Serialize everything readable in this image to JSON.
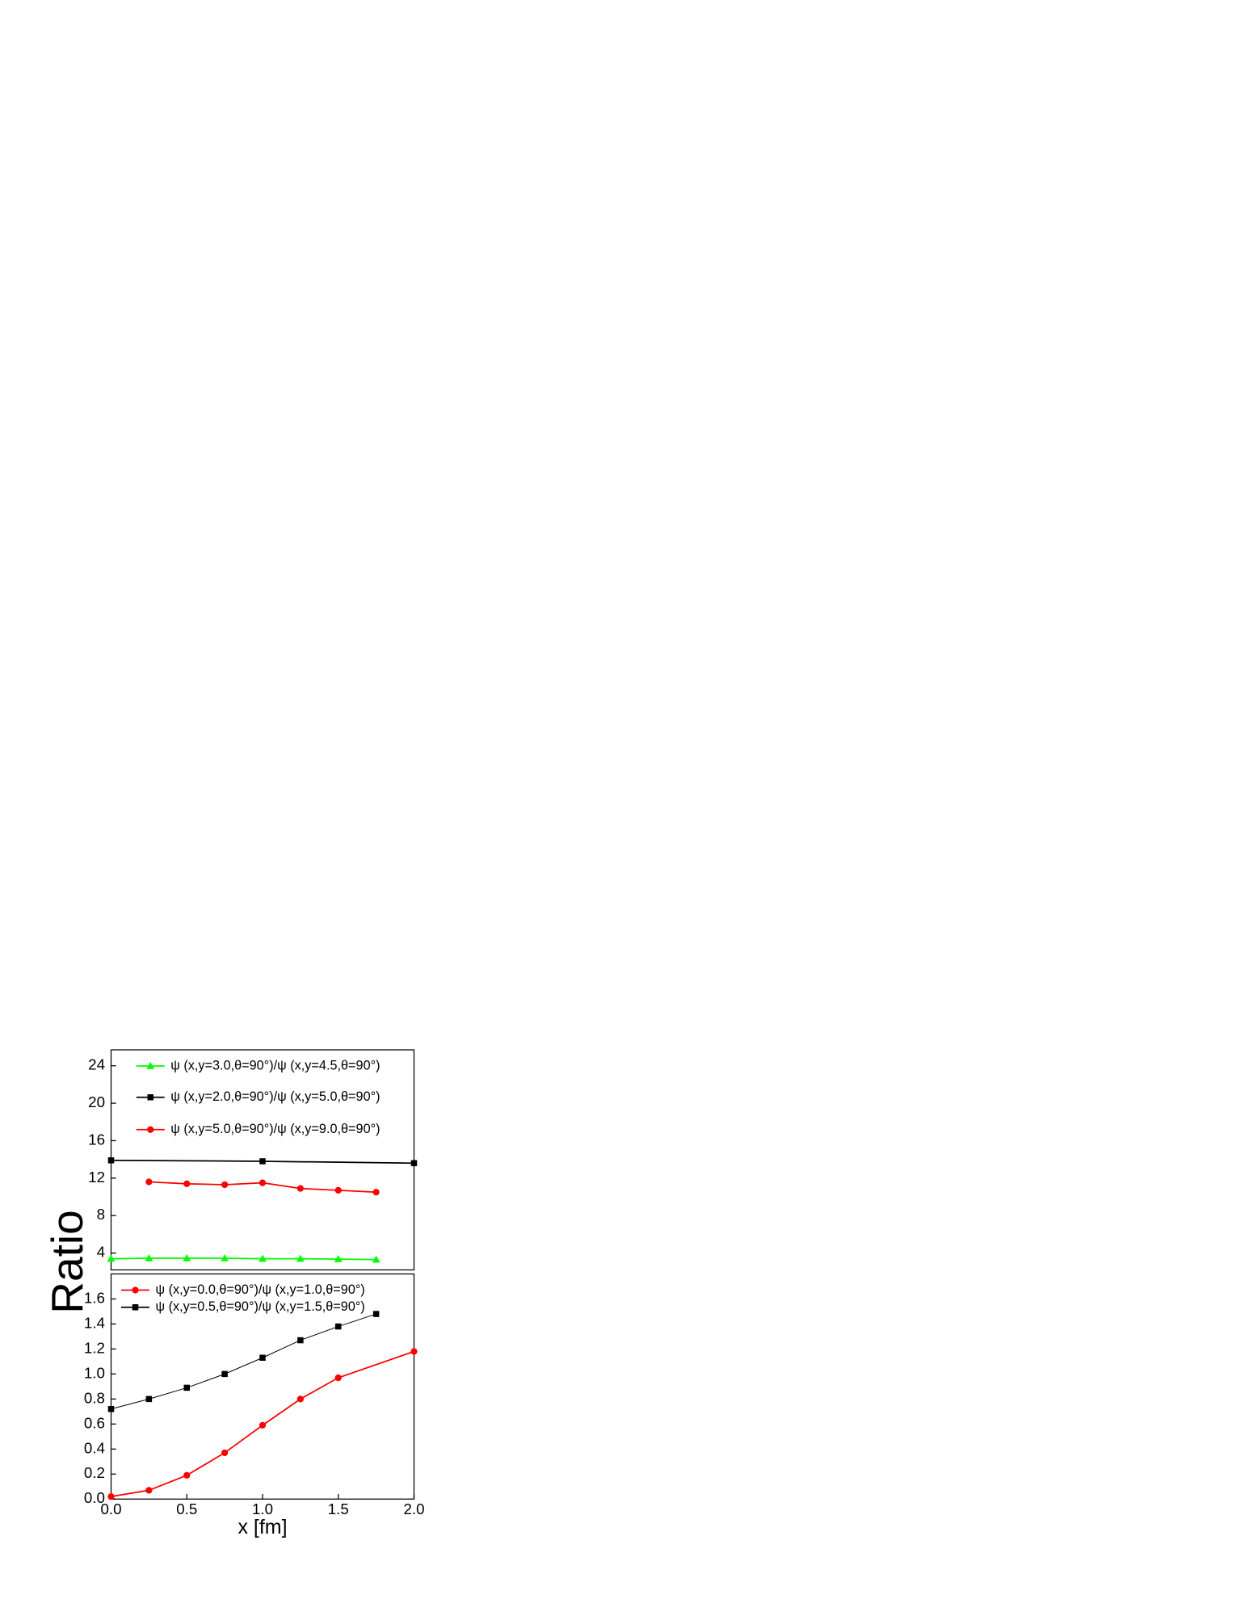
{
  "chart_data": [
    {
      "type": "line",
      "ylabel": "Ratio",
      "xlim": [
        0,
        2
      ],
      "ylim": [
        2.2,
        25.7
      ],
      "yticks": [
        4,
        8,
        12,
        16,
        20,
        24
      ],
      "series": [
        {
          "name": "ψ (x,y=3.0,θ=90°)/ψ (x,y=4.5,θ=90°)",
          "color": "#00ff00",
          "marker": "triangle",
          "x": [
            0,
            0.25,
            0.5,
            0.75,
            1,
            1.25,
            1.5,
            1.75
          ],
          "values": [
            3.4,
            3.45,
            3.45,
            3.45,
            3.4,
            3.4,
            3.35,
            3.3
          ]
        },
        {
          "name": "ψ (x,y=2.0,θ=90°)/ψ (x,y=5.0,θ=90°)",
          "color": "#000000",
          "marker": "square",
          "x": [
            0,
            1,
            2
          ],
          "values": [
            13.9,
            13.8,
            13.6
          ]
        },
        {
          "name": "ψ (x,y=5.0,θ=90°)/ψ (x,y=9.0,θ=90°)",
          "color": "#ff0000",
          "marker": "circle",
          "x": [
            0.25,
            0.5,
            0.75,
            1,
            1.25,
            1.5,
            1.75
          ],
          "values": [
            11.6,
            11.4,
            11.3,
            11.5,
            10.9,
            10.7,
            10.5
          ]
        }
      ]
    },
    {
      "type": "line",
      "xlabel": "x [fm]",
      "xlim": [
        0,
        2
      ],
      "ylim": [
        0,
        1.8
      ],
      "xticks": [
        {
          "value": 0,
          "label": "0.0"
        },
        {
          "value": 0.5,
          "label": "0.5"
        },
        {
          "value": 1,
          "label": "1.0"
        },
        {
          "value": 1.5,
          "label": "1.5"
        },
        {
          "value": 2,
          "label": "2.0"
        }
      ],
      "yticks": [
        {
          "value": 0,
          "label": "0.0"
        },
        {
          "value": 0.2,
          "label": "0.2"
        },
        {
          "value": 0.4,
          "label": "0.4"
        },
        {
          "value": 0.6,
          "label": "0.6"
        },
        {
          "value": 0.8,
          "label": "0.8"
        },
        {
          "value": 1,
          "label": "1.0"
        },
        {
          "value": 1.2,
          "label": "1.2"
        },
        {
          "value": 1.4,
          "label": "1.4"
        },
        {
          "value": 1.6,
          "label": "1.6"
        }
      ],
      "series": [
        {
          "name": "ψ (x,y=0.0,θ=90°)/ψ (x,y=1.0,θ=90°)",
          "color": "#ff0000",
          "marker": "circle",
          "x": [
            0,
            0.25,
            0.5,
            0.75,
            1,
            1.25,
            1.5,
            2
          ],
          "values": [
            0.02,
            0.07,
            0.19,
            0.37,
            0.59,
            0.8,
            0.97,
            1.18
          ]
        },
        {
          "name": "ψ (x,y=0.5,θ=90°)/ψ (x,y=1.5,θ=90°)",
          "color": "#000000",
          "marker": "square",
          "x": [
            0,
            0.25,
            0.5,
            0.75,
            1,
            1.25,
            1.5,
            1.75
          ],
          "values": [
            0.72,
            0.8,
            0.89,
            1.0,
            1.13,
            1.27,
            1.38,
            1.48
          ]
        }
      ]
    }
  ]
}
